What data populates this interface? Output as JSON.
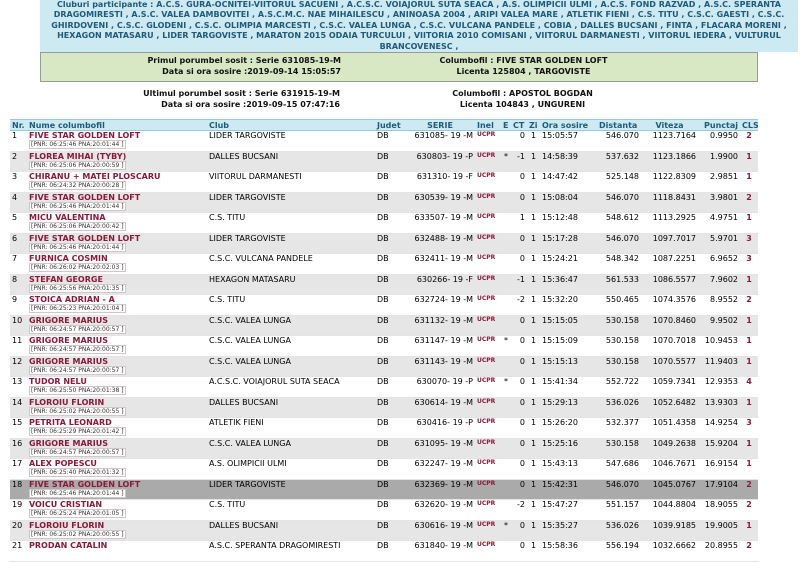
{
  "clubs": {
    "label": "Cluburi participante :",
    "text": "A.C.S. GURA-OCNITEI-VIITORUL SACUENI , A.C.S.C. VOIAJORUL SUTA SEACA , A.S. OLIMPICII ULMI , A.C.S. FOND RAZVAD , A.S.C. SPERANTA DRAGOMIRESTI , A.S.C. VALEA DAMBOVITEI , A.S.C.M.C. NAE MIHAILESCU , ANINOASA 2004 , ARIPI VALEA MARE , ATLETIK FIENI , C.S. TITU , C.S.C. GAESTI , C.S.C. GHIRDOVENI , C.S.C. GLODENI , C.S.C. OLIMPIA MARCESTI , C.S.C. VALEA LUNGA , C.S.C. VULCANA PANDELE , COBIA , DALLES BUCSANI , FINTA , FLACARA MORENI , HEXAGON MATASARU , LIDER TARGOVISTE , MARATON 2015 ODAIA TURCULUI , VIITORIA 2010 COMISANI , VIITORUL DARMANESTI , VIITORUL IEDERA , VULTURUL BRANCOVENESC ,"
  },
  "first_arrival": {
    "pigeon": "Primul porumbel sosit : Serie 631085-19-M",
    "datetime": "Data si ora sosire :2019-09-14 15:05:57",
    "owner": "Columbofil : FIVE STAR GOLDEN LOFT",
    "license": "Licenta 125804 , TARGOVISTE"
  },
  "last_arrival": {
    "pigeon": "Ultimul porumbel sosit : Serie 631915-19-M",
    "datetime": "Data si ora sosire :2019-09-15 07:47:16",
    "owner": "Columbofil : APOSTOL BOGDAN",
    "license": "Licenta 104843 , UNGURENI"
  },
  "table": {
    "headers": [
      "Nr.",
      "Nume columbofil",
      "Club",
      "Judet",
      "SERIE",
      "Inel",
      "E",
      "CT",
      "Zi",
      "Ora sosire",
      "Distanta",
      "Viteza",
      "Punctaj",
      "CLS"
    ],
    "rows": [
      {
        "nr": "1",
        "name": "FIVE STAR GOLDEN LOFT",
        "sub": "[PNR: 06:25:46 PNA:20:01:44 ]",
        "club": "LIDER TARGOVISTE",
        "judet": "DB",
        "serie": "631085- 19 -M",
        "inel": "UCPR",
        "e": "",
        "ct": "0",
        "zi": "1",
        "ora": "15:05:57",
        "dist": "546.070",
        "vit": "1123.7164",
        "pct": "0.9950",
        "cls": "2"
      },
      {
        "nr": "2",
        "name": "FLOREA MIHAI (TYBY)",
        "sub": "[PNR: 06:25:06 PNA:20:00:59 ]",
        "club": "DALLES BUCSANI",
        "judet": "DB",
        "serie": "630803- 19 -P",
        "inel": "UCPR",
        "e": "*",
        "ct": "-1",
        "zi": "1",
        "ora": "14:58:39",
        "dist": "537.632",
        "vit": "1123.1866",
        "pct": "1.9900",
        "cls": "1"
      },
      {
        "nr": "3",
        "name": "CHIRANU + MATEI PLOSCARU",
        "sub": "[PNR: 06:24:32 PNA:20:00:28 ]",
        "club": "VIITORUL DARMANESTI",
        "judet": "DB",
        "serie": "631310- 19 -F",
        "inel": "UCPR",
        "e": "",
        "ct": "0",
        "zi": "1",
        "ora": "14:47:42",
        "dist": "525.148",
        "vit": "1122.8309",
        "pct": "2.9851",
        "cls": "1"
      },
      {
        "nr": "4",
        "name": "FIVE STAR GOLDEN LOFT",
        "sub": "[PNR: 06:25:46 PNA:20:01:44 ]",
        "club": "LIDER TARGOVISTE",
        "judet": "DB",
        "serie": "630539- 19 -M",
        "inel": "UCPR",
        "e": "",
        "ct": "0",
        "zi": "1",
        "ora": "15:08:04",
        "dist": "546.070",
        "vit": "1118.8431",
        "pct": "3.9801",
        "cls": "2"
      },
      {
        "nr": "5",
        "name": "MICU VALENTINA",
        "sub": "[PNR: 06:25:06 PNA:20:00:42 ]",
        "club": "C.S. TITU",
        "judet": "DB",
        "serie": "633507- 19 -M",
        "inel": "UCPR",
        "e": "",
        "ct": "1",
        "zi": "1",
        "ora": "15:12:48",
        "dist": "548.612",
        "vit": "1113.2925",
        "pct": "4.9751",
        "cls": "1"
      },
      {
        "nr": "6",
        "name": "FIVE STAR GOLDEN LOFT",
        "sub": "[PNR: 06:25:46 PNA:20:01:44 ]",
        "club": "LIDER TARGOVISTE",
        "judet": "DB",
        "serie": "632488- 19 -M",
        "inel": "UCPR",
        "e": "",
        "ct": "0",
        "zi": "1",
        "ora": "15:17:28",
        "dist": "546.070",
        "vit": "1097.7017",
        "pct": "5.9701",
        "cls": "3"
      },
      {
        "nr": "7",
        "name": "FURNICA COSMIN",
        "sub": "[PNR: 06:26:02 PNA:20:02:03 ]",
        "club": "C.S.C. VULCANA PANDELE",
        "judet": "DB",
        "serie": "632411- 19 -M",
        "inel": "UCPR",
        "e": "",
        "ct": "0",
        "zi": "1",
        "ora": "15:24:21",
        "dist": "548.342",
        "vit": "1087.2251",
        "pct": "6.9652",
        "cls": "3"
      },
      {
        "nr": "8",
        "name": "STEFAN GEORGE",
        "sub": "[PNR: 06:25:56 PNA:20:01:35 ]",
        "club": "HEXAGON MATASARU",
        "judet": "DB",
        "serie": "630266- 19 -F",
        "inel": "UCPR",
        "e": "",
        "ct": "-1",
        "zi": "1",
        "ora": "15:36:47",
        "dist": "561.533",
        "vit": "1086.5577",
        "pct": "7.9602",
        "cls": "1"
      },
      {
        "nr": "9",
        "name": "STOICA ADRIAN - A",
        "sub": "[PNR: 06:25:23 PNA:20:01:04 ]",
        "club": "C.S. TITU",
        "judet": "DB",
        "serie": "632724- 19 -M",
        "inel": "UCPR",
        "e": "",
        "ct": "-2",
        "zi": "1",
        "ora": "15:32:20",
        "dist": "550.465",
        "vit": "1074.3576",
        "pct": "8.9552",
        "cls": "2"
      },
      {
        "nr": "10",
        "name": "GRIGORE MARIUS",
        "sub": "[PNR: 06:24:57 PNA:20:00:57 ]",
        "club": "C.S.C. VALEA LUNGA",
        "judet": "DB",
        "serie": "631132- 19 -M",
        "inel": "UCPR",
        "e": "",
        "ct": "0",
        "zi": "1",
        "ora": "15:15:05",
        "dist": "530.158",
        "vit": "1070.8460",
        "pct": "9.9502",
        "cls": "1"
      },
      {
        "nr": "11",
        "name": "GRIGORE MARIUS",
        "sub": "[PNR: 06:24:57 PNA:20:00:57 ]",
        "club": "C.S.C. VALEA LUNGA",
        "judet": "DB",
        "serie": "631147- 19 -M",
        "inel": "UCPR",
        "e": "*",
        "ct": "0",
        "zi": "1",
        "ora": "15:15:09",
        "dist": "530.158",
        "vit": "1070.7018",
        "pct": "10.9453",
        "cls": "1"
      },
      {
        "nr": "12",
        "name": "GRIGORE MARIUS",
        "sub": "[PNR: 06:24:57 PNA:20:00:57 ]",
        "club": "C.S.C. VALEA LUNGA",
        "judet": "DB",
        "serie": "631143- 19 -M",
        "inel": "UCPR",
        "e": "",
        "ct": "0",
        "zi": "1",
        "ora": "15:15:13",
        "dist": "530.158",
        "vit": "1070.5577",
        "pct": "11.9403",
        "cls": "1"
      },
      {
        "nr": "13",
        "name": "TUDOR NELU",
        "sub": "[PNR: 06:25:50 PNA:20:01:38 ]",
        "club": "A.C.S.C. VOIAJORUL SUTA SEACA",
        "judet": "DB",
        "serie": "630070- 19 -P",
        "inel": "UCPR",
        "e": "*",
        "ct": "0",
        "zi": "1",
        "ora": "15:41:34",
        "dist": "552.722",
        "vit": "1059.7341",
        "pct": "12.9353",
        "cls": "4"
      },
      {
        "nr": "14",
        "name": "FLOROIU FLORIN",
        "sub": "[PNR: 06:25:02 PNA:20:00:55 ]",
        "club": "DALLES BUCSANI",
        "judet": "DB",
        "serie": "630614- 19 -M",
        "inel": "UCPR",
        "e": "",
        "ct": "0",
        "zi": "1",
        "ora": "15:29:13",
        "dist": "536.026",
        "vit": "1052.6482",
        "pct": "13.9303",
        "cls": "1"
      },
      {
        "nr": "15",
        "name": "PETRITA LEONARD",
        "sub": "[PNR: 06:25:29 PNA:20:01:42 ]",
        "club": "ATLETIK FIENI",
        "judet": "DB",
        "serie": "630416- 19 -P",
        "inel": "UCPR",
        "e": "",
        "ct": "0",
        "zi": "1",
        "ora": "15:26:20",
        "dist": "532.377",
        "vit": "1051.4358",
        "pct": "14.9254",
        "cls": "3"
      },
      {
        "nr": "16",
        "name": "GRIGORE MARIUS",
        "sub": "[PNR: 06:24:57 PNA:20:00:57 ]",
        "club": "C.S.C. VALEA LUNGA",
        "judet": "DB",
        "serie": "631095- 19 -M",
        "inel": "UCPR",
        "e": "",
        "ct": "0",
        "zi": "1",
        "ora": "15:25:16",
        "dist": "530.158",
        "vit": "1049.2638",
        "pct": "15.9204",
        "cls": "1"
      },
      {
        "nr": "17",
        "name": "ALEX POPESCU",
        "sub": "[PNR: 06:25:40 PNA:20:01:32 ]",
        "club": "A.S. OLIMPICII ULMI",
        "judet": "DB",
        "serie": "632247- 19 -M",
        "inel": "UCPR",
        "e": "",
        "ct": "0",
        "zi": "1",
        "ora": "15:43:13",
        "dist": "547.686",
        "vit": "1046.7671",
        "pct": "16.9154",
        "cls": "1"
      },
      {
        "nr": "18",
        "name": "FIVE STAR GOLDEN LOFT",
        "sub": "[PNR: 06:25:46 PNA:20:01:44 ]",
        "club": "LIDER TARGOVISTE",
        "judet": "DB",
        "serie": "632369- 19 -M",
        "inel": "UCPR",
        "e": "",
        "ct": "0",
        "zi": "1",
        "ora": "15:42:31",
        "dist": "546.070",
        "vit": "1045.0767",
        "pct": "17.9104",
        "cls": "2"
      },
      {
        "nr": "19",
        "name": "VOICU CRISTIAN",
        "sub": "[PNR: 06:25:24 PNA:20:01:05 ]",
        "club": "C.S. TITU",
        "judet": "DB",
        "serie": "632620- 19 -M",
        "inel": "UCPR",
        "e": "",
        "ct": "-2",
        "zi": "1",
        "ora": "15:47:27",
        "dist": "551.157",
        "vit": "1044.8804",
        "pct": "18.9055",
        "cls": "2"
      },
      {
        "nr": "20",
        "name": "FLOROIU FLORIN",
        "sub": "[PNR: 06:25:02 PNA:20:00:55 ]",
        "club": "DALLES BUCSANI",
        "judet": "DB",
        "serie": "630616- 19 -M",
        "inel": "UCPR",
        "e": "*",
        "ct": "0",
        "zi": "1",
        "ora": "15:35:27",
        "dist": "536.026",
        "vit": "1039.9185",
        "pct": "19.9005",
        "cls": "1"
      },
      {
        "nr": "21",
        "name": "PRODAN CATALIN",
        "sub": "",
        "club": "A.S.C. SPERANTA DRAGOMIRESTI",
        "judet": "DB",
        "serie": "631840- 19 -M",
        "inel": "UCPR",
        "e": "",
        "ct": "0",
        "zi": "1",
        "ora": "15:58:36",
        "dist": "556.194",
        "vit": "1032.6662",
        "pct": "20.8955",
        "cls": "2"
      }
    ]
  }
}
